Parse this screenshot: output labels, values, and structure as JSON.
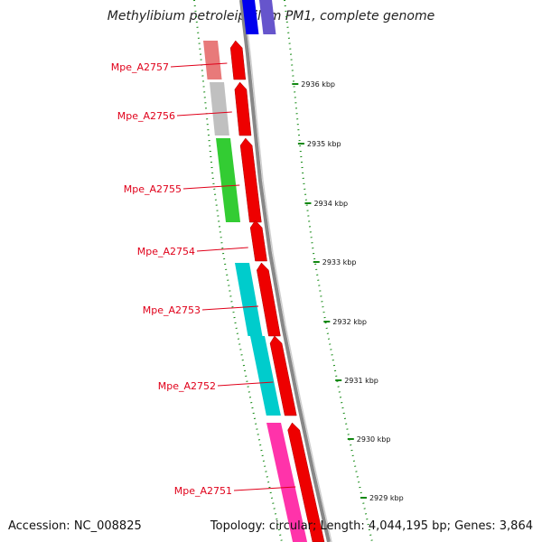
{
  "title": "Methylibium petroleiphilum PM1, complete genome",
  "accession": "Accession: NC_008825",
  "summary": "Topology: circular; Length: 4,044,195 bp; Genes: 3,864",
  "genes": [
    {
      "name": "Mpe_A2757",
      "color": "#e87a7a"
    },
    {
      "name": "Mpe_A2756",
      "color": "#c0c0c0"
    },
    {
      "name": "Mpe_A2755",
      "color": "#33cc33"
    },
    {
      "name": "Mpe_A2754",
      "color": ""
    },
    {
      "name": "Mpe_A2753",
      "color": "#00cccc"
    },
    {
      "name": "Mpe_A2752",
      "color": "#00cccc"
    },
    {
      "name": "Mpe_A2751",
      "color": "#ff33aa"
    }
  ],
  "ticks": [
    "2936 kbp",
    "2935 kbp",
    "2934 kbp",
    "2933 kbp",
    "2932 kbp",
    "2931 kbp",
    "2930 kbp",
    "2929 kbp"
  ],
  "colors": {
    "strand_red": "#ee0000",
    "backbone": "#888888",
    "tick_green": "#118811",
    "label_red": "#e0001a",
    "top_blue": "#0000ee",
    "top_purple": "#6655cc"
  }
}
